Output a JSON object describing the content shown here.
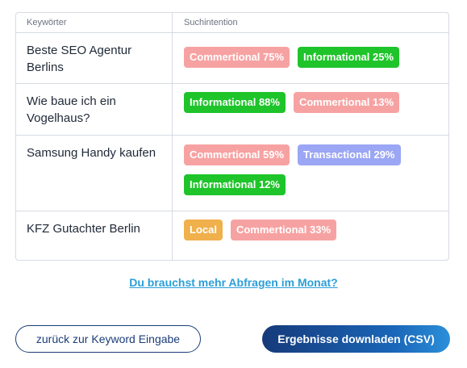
{
  "table": {
    "headers": {
      "keyword": "Keywörter",
      "intent": "Suchintention"
    },
    "rows": [
      {
        "keyword": "Beste SEO Agentur Berlins",
        "badges": [
          {
            "type": "commertional",
            "label": "Commertional 75%"
          },
          {
            "type": "informational",
            "label": "Informational 25%"
          }
        ]
      },
      {
        "keyword": "Wie baue ich ein Vogelhaus?",
        "badges": [
          {
            "type": "informational",
            "label": "Informational 88%"
          },
          {
            "type": "commertional",
            "label": "Commertional 13%"
          }
        ]
      },
      {
        "keyword": "Samsung Handy kaufen",
        "badges": [
          {
            "type": "commertional",
            "label": "Commertional 59%"
          },
          {
            "type": "transactional",
            "label": "Transactional 29%"
          },
          {
            "type": "informational",
            "label": "Informational 12%"
          }
        ]
      },
      {
        "keyword": "KFZ Gutachter Berlin",
        "badges": [
          {
            "type": "local",
            "label": "Local"
          },
          {
            "type": "commertional",
            "label": "Commertional 33%"
          }
        ]
      }
    ]
  },
  "colors": {
    "commertional": "#f7a2a2",
    "informational": "#1ec42a",
    "transactional": "#9ba6f4",
    "local": "#f0b04b",
    "link": "#2a9fd8",
    "primary": "#1b3d78"
  },
  "links": {
    "more_queries": "Du brauchst mehr Abfragen im Monat?"
  },
  "buttons": {
    "back": "zurück zur Keyword Eingabe",
    "download": "Ergebnisse downladen (CSV)"
  }
}
